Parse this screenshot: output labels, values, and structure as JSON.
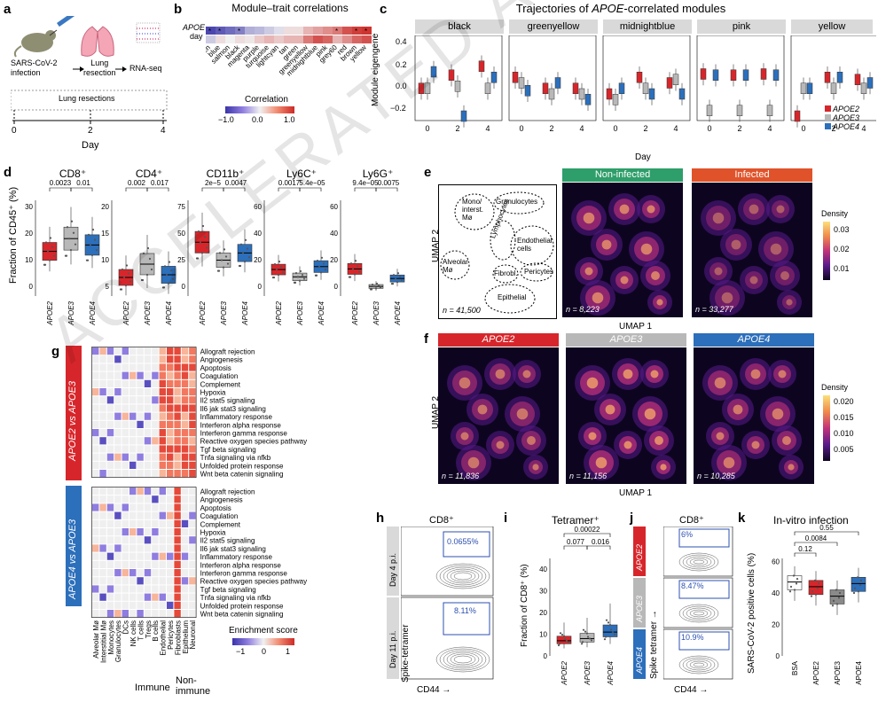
{
  "panels": {
    "a": {
      "letter": "a",
      "infection": "SARS-CoV-2\ninfection",
      "lung": "Lung\nresection",
      "rnaseq": "RNA-seq",
      "resections": "Lung resections",
      "days": [
        "0",
        "2",
        "4"
      ],
      "xlabel": "Day"
    },
    "b": {
      "letter": "b",
      "title": "Module–trait correlations",
      "row1": "APOE",
      "row2": "day",
      "legend_title": "Correlation",
      "legend_ticks": [
        "−1.0",
        "0.0",
        "1.0"
      ],
      "modules": [
        "lightgreen",
        "blue",
        "salmon",
        "black",
        "magenta",
        "purple",
        "turquoise",
        "lightcyan",
        "tan",
        "green",
        "greenyellow",
        "midnightblue",
        "pink",
        "grey60",
        "red",
        "brown",
        "yellow"
      ]
    },
    "c": {
      "letter": "c",
      "title": "Trajectories of APOE-correlated modules",
      "ylabel": "Module eigengene",
      "xlabel": "Day",
      "facets": [
        "black",
        "greenyellow",
        "midnightblue",
        "pink",
        "yellow"
      ],
      "yticks": [
        "0.4",
        "0.2",
        "0.0",
        "−0.2"
      ],
      "xticks": [
        "0",
        "2",
        "4"
      ],
      "legend": [
        "APOE2",
        "APOE3",
        "APOE4"
      ]
    },
    "d": {
      "letter": "d",
      "ylabel": "Fraction of CD45⁺ (%)",
      "plots": [
        {
          "title": "CD8⁺",
          "yticks": [
            "30",
            "20",
            "10",
            "0"
          ],
          "p": [
            "0.0023",
            "0.01"
          ]
        },
        {
          "title": "CD4⁺",
          "yticks": [
            "20",
            "15",
            "10",
            "5"
          ],
          "p": [
            "0.002",
            "0.017"
          ]
        },
        {
          "title": "CD11b⁺",
          "yticks": [
            "75",
            "50",
            "25",
            "0"
          ],
          "p": [
            "2e−5",
            "0.0047"
          ]
        },
        {
          "title": "Ly6C⁺",
          "yticks": [
            "60",
            "40",
            "20",
            "0"
          ],
          "p": [
            "0.0017",
            "5.4e−05"
          ]
        },
        {
          "title": "Ly6G⁺",
          "yticks": [
            "60",
            "40",
            "20",
            "0"
          ],
          "p": [
            "9.4e−05",
            "0.0075"
          ]
        }
      ],
      "xcats": [
        "APOE2",
        "APOE3",
        "APOE4"
      ]
    },
    "e": {
      "letter": "e",
      "ylabel": "UMAP 2",
      "xlabel": "UMAP 1",
      "hdr1": "Non-infected",
      "hdr2": "Infected",
      "n0": "n = 41,500",
      "n1": "n = 8,223",
      "n2": "n = 33,277",
      "clusters": [
        "Granulocytes",
        "Mono/\ninterst.\nMø",
        "Lymphocytes",
        "Endothelial\ncells",
        "Alveolar\nMø",
        "Fibrobl.",
        "Pericytes",
        "Epithelial"
      ],
      "legend_title": "Density",
      "legend_ticks": [
        "0.03",
        "0.02",
        "0.01"
      ]
    },
    "f": {
      "letter": "f",
      "ylabel": "UMAP 2",
      "xlabel": "UMAP 1",
      "hdrs": [
        "APOE2",
        "APOE3",
        "APOE4"
      ],
      "ns": [
        "n = 11,836",
        "n = 11,156",
        "n = 10,285"
      ],
      "legend_title": "Density",
      "legend_ticks": [
        "0.020",
        "0.015",
        "0.010",
        "0.005"
      ]
    },
    "g": {
      "letter": "g",
      "label1": "APOE2 vs APOE3",
      "label2": "APOE4 vs APOE3",
      "pathways": [
        "Allograft rejection",
        "Angiogenesis",
        "Apoptosis",
        "Coagulation",
        "Complement",
        "Hypoxia",
        "Il2 stat5 signaling",
        "Il6 jak stat3 signaling",
        "Inflammatory response",
        "Interferon alpha response",
        "Interferon gamma response",
        "Reactive oxygen species pathway",
        "Tgf beta signaling",
        "Tnfa signaling via nfkb",
        "Unfolded protein response",
        "Wnt beta catenin signaling"
      ],
      "celltypes": [
        "Alveolar Mø",
        "Interstitial Mø",
        "Monocytes",
        "Granulocytes",
        "DCs",
        "NK cells",
        "T cells",
        "Tregs",
        "B cells",
        "Endothelial",
        "Pericytes",
        "Fibroblasts",
        "Epithelium",
        "Neuronal"
      ],
      "immune": "Immune",
      "nonimmune": "Non-\nimmune",
      "legend_title": "Enrichment score",
      "legend_ticks": [
        "−1",
        "0",
        "1"
      ]
    },
    "h": {
      "letter": "h",
      "title": "CD8⁺",
      "row1": "Day 4 p.i.",
      "row2": "Day 11 p.i.",
      "pct1": "0.0655%",
      "pct2": "8.11%",
      "ylabel": "Spike-tetramer",
      "xlabel": "CD44 →"
    },
    "i": {
      "letter": "i",
      "title": "Tetramer⁺",
      "ylabel": "Fraction of CD8⁺ (%)",
      "yticks": [
        "40",
        "30",
        "20",
        "10",
        "0"
      ],
      "p": [
        "0.00022",
        "0.077",
        "0.016"
      ],
      "xcats": [
        "APOE2",
        "APOE3",
        "APOE4"
      ]
    },
    "j": {
      "letter": "j",
      "title": "CD8⁺",
      "rows": [
        "APOE2",
        "APOE3",
        "APOE4"
      ],
      "pcts": [
        "6%",
        "8.47%",
        "10.9%"
      ],
      "ylabel": "Spike tetramer →",
      "xlabel": "CD44 →"
    },
    "k": {
      "letter": "k",
      "title": "In-vitro infection",
      "ylabel": "SARS-CoV-2 positive cells (%)",
      "yticks": [
        "60",
        "40",
        "20",
        "0"
      ],
      "p": [
        "0.55",
        "0.0084",
        "0.12"
      ],
      "xcats": [
        "BSA",
        "APOE2",
        "APOE3",
        "APOE4"
      ]
    }
  },
  "watermark": "ACCELERATED ARTICLE PREVIEW",
  "colors": {
    "apoe2": "#d7262b",
    "apoe3": "#b8b8b8",
    "apoe4": "#2c6fbb",
    "green": "#2e9e6a",
    "orange": "#e0532a"
  },
  "chart_data": [
    {
      "type": "bar",
      "name": "d",
      "categories": [
        "APOE2",
        "APOE3",
        "APOE4"
      ],
      "series": [
        {
          "name": "CD8⁺",
          "values": [
            14,
            18,
            16
          ]
        },
        {
          "name": "CD4⁺",
          "values": [
            7.5,
            10,
            8
          ]
        },
        {
          "name": "CD11b⁺",
          "values": [
            45,
            30,
            36
          ]
        },
        {
          "name": "Ly6C⁺",
          "values": [
            18,
            13,
            20
          ]
        },
        {
          "name": "Ly6G⁺",
          "values": [
            17,
            6,
            11
          ]
        }
      ]
    },
    {
      "type": "bar",
      "name": "i",
      "categories": [
        "APOE2",
        "APOE3",
        "APOE4"
      ],
      "values": [
        7,
        8,
        11
      ]
    },
    {
      "type": "bar",
      "name": "k",
      "categories": [
        "BSA",
        "APOE2",
        "APOE3",
        "APOE4"
      ],
      "values": [
        47,
        44,
        38,
        46
      ],
      "ylim": [
        0,
        60
      ]
    }
  ]
}
